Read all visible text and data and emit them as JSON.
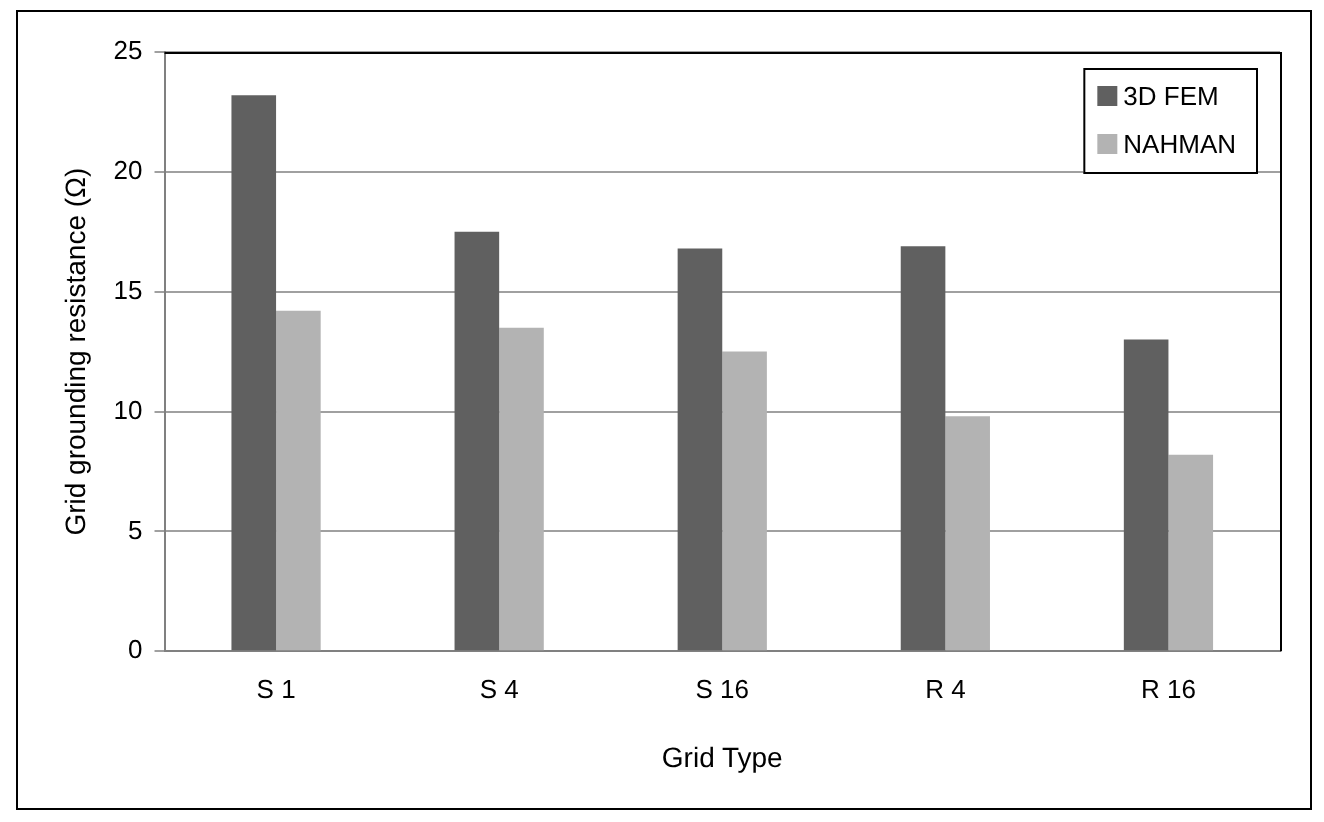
{
  "chart_data": {
    "type": "bar",
    "xlabel": "Grid Type",
    "ylabel": "Grid grounding resistance (Ω)",
    "categories": [
      "S 1",
      "S 4",
      "S 16",
      "R 4",
      "R 16"
    ],
    "series": [
      {
        "name": "3D FEM",
        "color": "#606060",
        "values": [
          23.2,
          17.5,
          16.8,
          16.9,
          13.0
        ]
      },
      {
        "name": "NAHMAN",
        "color": "#b3b3b3",
        "values": [
          14.2,
          13.5,
          12.5,
          9.8,
          8.2
        ]
      }
    ],
    "ylim": [
      0,
      25
    ],
    "yticks": [
      0,
      5,
      10,
      15,
      20,
      25
    ],
    "grid": "y",
    "legend": "top right"
  }
}
